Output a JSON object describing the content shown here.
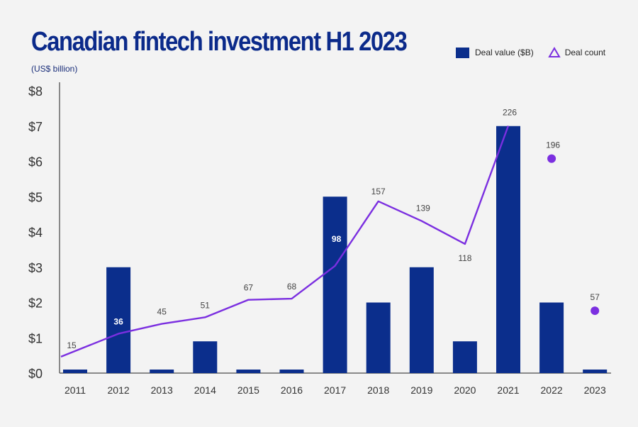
{
  "header": {
    "title": "Canadian fintech investment H1 2023",
    "subtitle": "(US$ billion)"
  },
  "legend": {
    "bar_label": "Deal value ($B)",
    "line_label": "Deal count"
  },
  "colors": {
    "bar": "#0b2e8c",
    "line": "#7b2fe0",
    "title": "#0b2a8a"
  },
  "chart_data": {
    "type": "bar",
    "title": "Canadian fintech investment H1 2023",
    "subtitle": "(US$ billion)",
    "categories": [
      "2011",
      "2012",
      "2013",
      "2014",
      "2015",
      "2016",
      "2017",
      "2018",
      "2019",
      "2020",
      "2021",
      "2022",
      "2023"
    ],
    "ytick_labels": [
      "$0",
      "$1",
      "$2",
      "$3",
      "$4",
      "$5",
      "$6",
      "$7",
      "$8"
    ],
    "ylim": [
      0,
      8
    ],
    "secondary_ylim": [
      0,
      258
    ],
    "series": [
      {
        "name": "Deal value ($B)",
        "type": "bar",
        "values": [
          0.1,
          3.0,
          0.1,
          0.9,
          0.1,
          0.1,
          5.0,
          2.0,
          3.0,
          0.9,
          7.0,
          2.0,
          0.1
        ]
      },
      {
        "name": "Deal count",
        "type": "line",
        "values": [
          15,
          36,
          45,
          51,
          67,
          68,
          98,
          157,
          139,
          118,
          226,
          196,
          57
        ],
        "marker_only_from": "2022"
      }
    ],
    "legend_position": "top-right",
    "grid": false
  }
}
